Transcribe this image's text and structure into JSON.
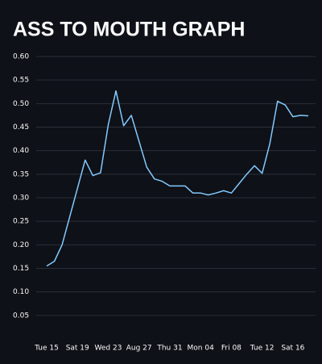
{
  "chart_data": {
    "type": "line",
    "title": "ASS TO MOUTH GRAPH",
    "categories": [
      "Tue 15",
      null,
      null,
      null,
      "Sat 19",
      null,
      null,
      null,
      "Wed 23",
      null,
      null,
      null,
      "Aug 27",
      null,
      null,
      null,
      "Thu 31",
      null,
      null,
      null,
      "Mon 04",
      null,
      null,
      null,
      "Fri 08",
      null,
      null,
      null,
      "Tue 12",
      null,
      null,
      null,
      "Sat 16",
      null,
      null
    ],
    "values": [
      0.155,
      0.165,
      0.2,
      0.26,
      0.32,
      0.38,
      0.347,
      0.353,
      0.455,
      0.527,
      0.453,
      0.475,
      0.42,
      0.365,
      0.34,
      0.335,
      0.325,
      0.325,
      0.325,
      0.31,
      0.31,
      0.306,
      0.31,
      0.315,
      0.31,
      0.33,
      0.35,
      0.368,
      0.352,
      0.415,
      0.505,
      0.497,
      0.472,
      0.475,
      0.474
    ],
    "color": "#83c9ff",
    "ylim": [
      0,
      0.6
    ],
    "yticks": [
      {
        "value": 0.05,
        "label": "0.05"
      },
      {
        "value": 0.1,
        "label": "0.10"
      },
      {
        "value": 0.15,
        "label": "0.15"
      },
      {
        "value": 0.2,
        "label": "0.20"
      },
      {
        "value": 0.25,
        "label": "0.25"
      },
      {
        "value": 0.3,
        "label": "0.30"
      },
      {
        "value": 0.35,
        "label": "0.35"
      },
      {
        "value": 0.4,
        "label": "0.40"
      },
      {
        "value": 0.45,
        "label": "0.45"
      },
      {
        "value": 0.5,
        "label": "0.50"
      },
      {
        "value": 0.55,
        "label": "0.55"
      },
      {
        "value": 0.6,
        "label": "0.60"
      }
    ],
    "grid": true
  }
}
